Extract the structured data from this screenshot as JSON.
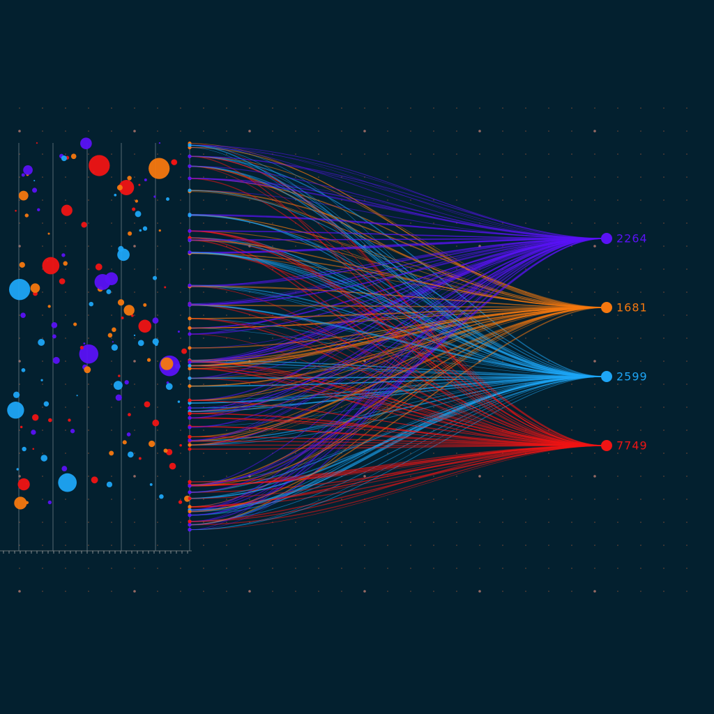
{
  "nodes": [
    {
      "label": "2264",
      "color": "#5a12f5"
    },
    {
      "label": "1681",
      "color": "#f5780f"
    },
    {
      "label": "2599",
      "color": "#1ea5f5"
    },
    {
      "label": "7749",
      "color": "#f01414"
    }
  ]
}
